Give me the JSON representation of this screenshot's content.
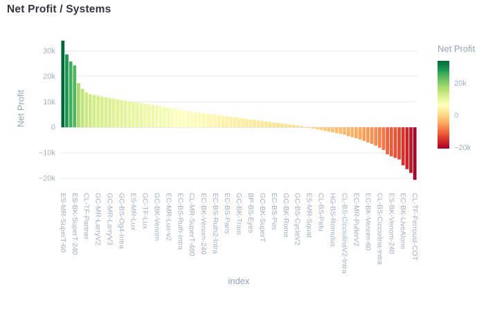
{
  "title": "Net Profit / Systems",
  "colors": {
    "background": "#ffffff",
    "title_text": "#31333f",
    "axis_title_text": "#97a2b8",
    "tick_text": "#a5afc2",
    "grid": "#e9edf4",
    "zeroline": "#dfe6ee"
  },
  "yaxis": {
    "title": "Net Profit",
    "ticks": [
      {
        "v": 30,
        "label": "30k"
      },
      {
        "v": 20,
        "label": "20k"
      },
      {
        "v": 10,
        "label": "10k"
      },
      {
        "v": 0,
        "label": "0"
      },
      {
        "v": -10,
        "label": "−10k"
      },
      {
        "v": -20,
        "label": "−20k"
      }
    ]
  },
  "xaxis": {
    "title": "index"
  },
  "colorbar": {
    "title": "Net Profit",
    "ticks": [
      {
        "v": 20,
        "label": "20k"
      },
      {
        "v": 0,
        "label": "0"
      },
      {
        "v": -20,
        "label": "−20k"
      }
    ]
  },
  "chart_data": {
    "type": "bar",
    "title": "Net Profit / Systems",
    "xlabel": "index",
    "ylabel": "Net Profit",
    "unit": "thousands",
    "ylim": [
      -23.8,
      37.2
    ],
    "grid": true,
    "legend_position": "right-colorbar",
    "colorscale_name": "RdYlGn",
    "colorscale": [
      [
        0.0,
        "#a50026"
      ],
      [
        0.1,
        "#d73027"
      ],
      [
        0.2,
        "#f46d43"
      ],
      [
        0.3,
        "#fdae61"
      ],
      [
        0.4,
        "#fee08b"
      ],
      [
        0.5,
        "#ffffbf"
      ],
      [
        0.6,
        "#d9ef8b"
      ],
      [
        0.7,
        "#a6d96a"
      ],
      [
        0.8,
        "#66bd63"
      ],
      [
        0.9,
        "#1a9850"
      ],
      [
        1.0,
        "#006837"
      ]
    ],
    "label_every": 3,
    "categories": [
      "ES-MR-SuperT-60",
      "ES-BK-SuperT-240",
      "CL-TF-Partner",
      "GC-MR-LarryV2",
      "GC-MR-LarryV3",
      "GC-BS-Og4-Intra",
      "ES-MR-Lux",
      "GC-TF-Lux",
      "GC-BK-Venom",
      "EC-MR-Lux-v2",
      "EC-BS-Ruth-Intra",
      "CL-MR-SuperT-480",
      "EC-BK-Venom-240",
      "EC-BS-Ruth2-Intra",
      "EC-BS-Paris",
      "GC-BK-Tram",
      "BP-BS-Eyes",
      "GC-BK-SuperT",
      "EC-BS-Pos",
      "GC-BK-Rome",
      "GC-BS-CycleV2",
      "ES-MR-Squat",
      "CL-BS-Pelu",
      "HG-BS-Romulus",
      "CL-BS-CicciolinaV2-Intra",
      "EC-MR-PullerV2",
      "EC-BK-Venom-60",
      "CL-BS-Cicciolina-Intra",
      "ES-BK-Venom-240",
      "EC-BK-LiveAlone",
      "CL-TF-Ferroust-COT"
    ],
    "values": [
      34.0,
      28.6,
      25.8,
      24.3,
      17.3,
      15.1,
      13.7,
      13.0,
      12.7,
      12.4,
      12.1,
      11.8,
      11.5,
      11.2,
      11.0,
      10.7,
      10.4,
      10.2,
      9.9,
      9.7,
      9.5,
      9.2,
      9.0,
      8.8,
      8.5,
      8.3,
      8.0,
      7.8,
      7.5,
      7.2,
      6.9,
      6.6,
      6.3,
      6.1,
      5.9,
      5.7,
      5.5,
      5.3,
      5.1,
      4.9,
      4.7,
      4.5,
      4.3,
      4.1,
      3.9,
      3.7,
      3.5,
      3.3,
      3.1,
      2.9,
      2.7,
      2.5,
      2.3,
      2.1,
      1.9,
      1.7,
      1.5,
      1.3,
      1.1,
      0.9,
      0.7,
      0.5,
      0.2,
      -0.2,
      -0.5,
      -0.8,
      -1.1,
      -1.4,
      -1.7,
      -2.0,
      -2.3,
      -2.6,
      -2.9,
      -3.5,
      -3.9,
      -4.3,
      -4.8,
      -5.3,
      -5.9,
      -6.5,
      -7.2,
      -8.0,
      -8.9,
      -10.6,
      -11.4,
      -12.0,
      -12.6,
      -14.9,
      -16.4,
      -17.9,
      -20.6
    ]
  }
}
